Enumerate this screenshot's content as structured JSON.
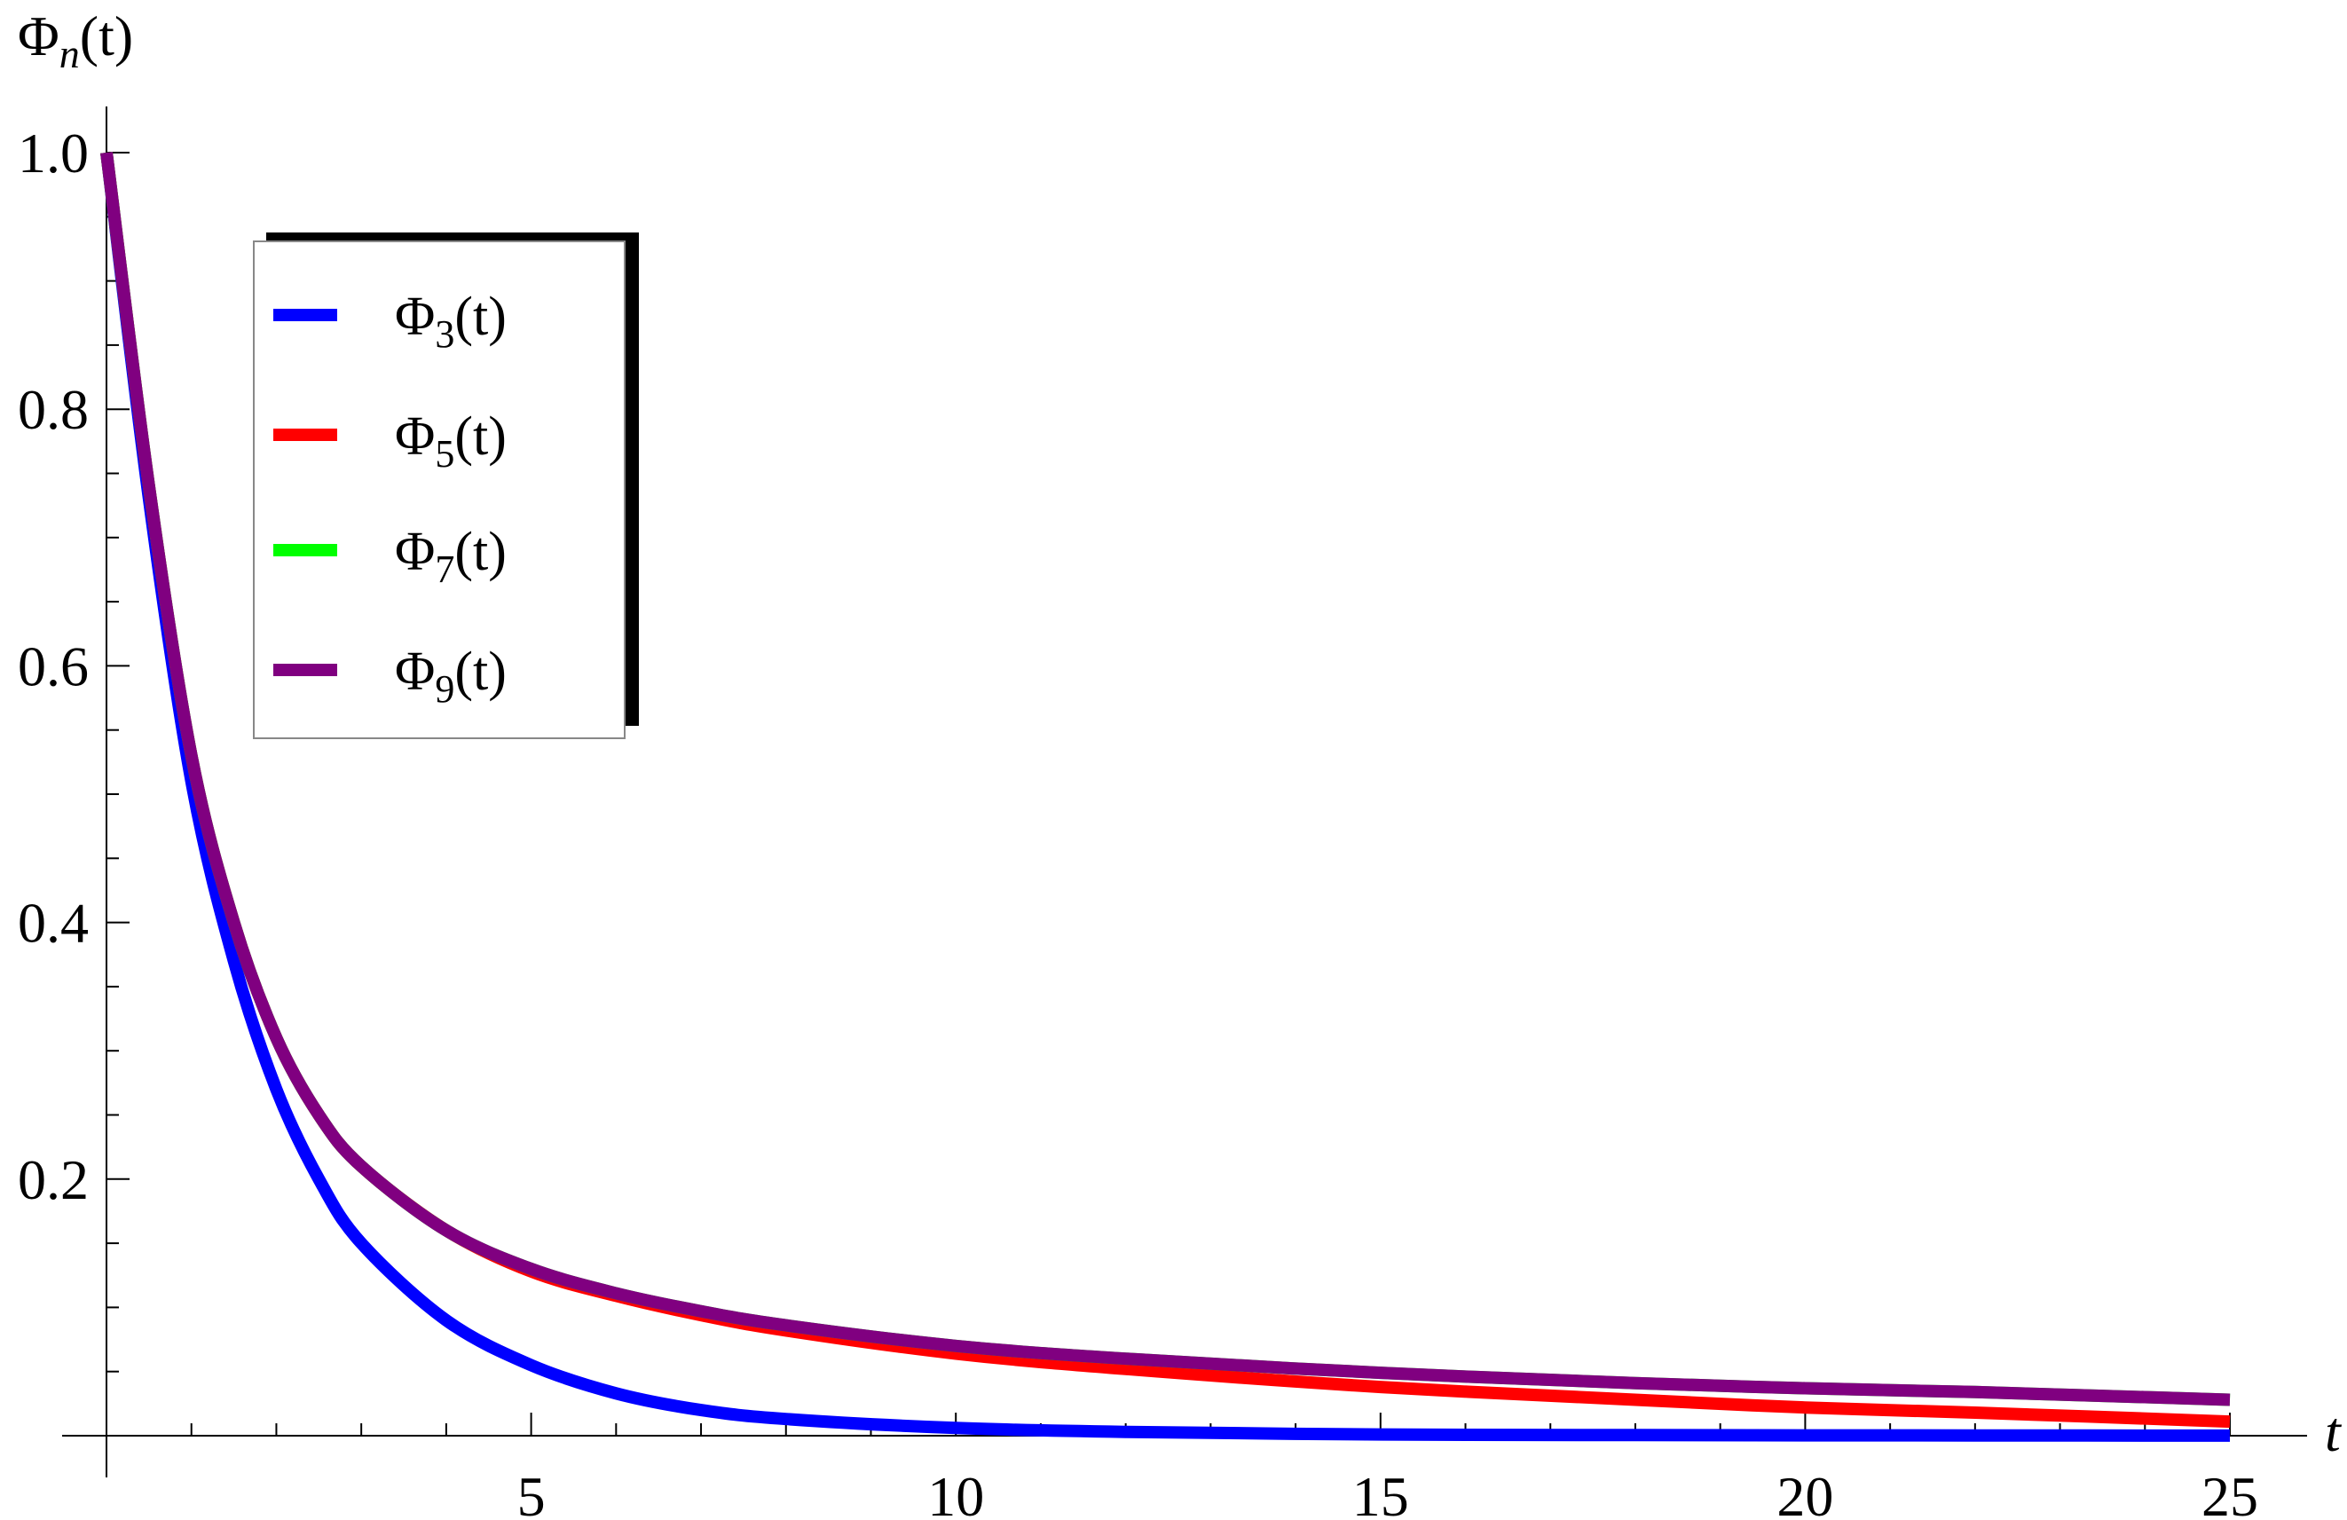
{
  "chart_data": {
    "type": "line",
    "title": "",
    "xlabel": "t",
    "ylabel_symbol": "Φ",
    "ylabel_subscript": "n",
    "ylabel_arg": "(t)",
    "xlim": [
      0,
      25
    ],
    "ylim": [
      0,
      1.0
    ],
    "x_ticks": [
      5,
      10,
      15,
      20,
      25
    ],
    "x_tick_labels": [
      "5",
      "10",
      "15",
      "20",
      "25"
    ],
    "y_ticks": [
      0.2,
      0.4,
      0.6,
      0.8,
      1.0
    ],
    "y_tick_labels": [
      "0.2",
      "0.4",
      "0.6",
      "0.8",
      "1.0"
    ],
    "grid": false,
    "legend_position": "top-left",
    "x": [
      0,
      0.5,
      1,
      1.5,
      2,
      2.5,
      3,
      4,
      5,
      6,
      7,
      8,
      10,
      12,
      15,
      18,
      20,
      22,
      25
    ],
    "series": [
      {
        "name": "Φ3(t)",
        "label_symbol": "Φ",
        "label_sub": "3",
        "label_arg": "(t)",
        "color": "#0000ff",
        "values": [
          1.0,
          0.73,
          0.51,
          0.37,
          0.27,
          0.2,
          0.15,
          0.09,
          0.055,
          0.033,
          0.02,
          0.013,
          0.006,
          0.003,
          0.001,
          0.0005,
          0.0003,
          0.0002,
          0.0001
        ]
      },
      {
        "name": "Φ5(t)",
        "label_symbol": "Φ",
        "label_sub": "5",
        "label_arg": "(t)",
        "color": "#ff0000",
        "values": [
          1.0,
          0.74,
          0.53,
          0.4,
          0.31,
          0.25,
          0.21,
          0.16,
          0.128,
          0.109,
          0.094,
          0.082,
          0.064,
          0.052,
          0.038,
          0.028,
          0.022,
          0.018,
          0.011
        ]
      },
      {
        "name": "Φ7(t)",
        "label_symbol": "Φ",
        "label_sub": "7",
        "label_arg": "(t)",
        "color": "#00ff00",
        "values": [
          1.0,
          0.74,
          0.53,
          0.4,
          0.31,
          0.25,
          0.21,
          0.16,
          0.13,
          0.111,
          0.097,
          0.086,
          0.07,
          0.06,
          0.049,
          0.041,
          0.037,
          0.034,
          0.028
        ]
      },
      {
        "name": "Φ9(t)",
        "label_symbol": "Φ",
        "label_sub": "9",
        "label_arg": "(t)",
        "color": "#800080",
        "values": [
          1.0,
          0.74,
          0.53,
          0.4,
          0.31,
          0.25,
          0.21,
          0.16,
          0.13,
          0.111,
          0.097,
          0.086,
          0.07,
          0.06,
          0.049,
          0.041,
          0.037,
          0.034,
          0.028
        ]
      }
    ]
  }
}
